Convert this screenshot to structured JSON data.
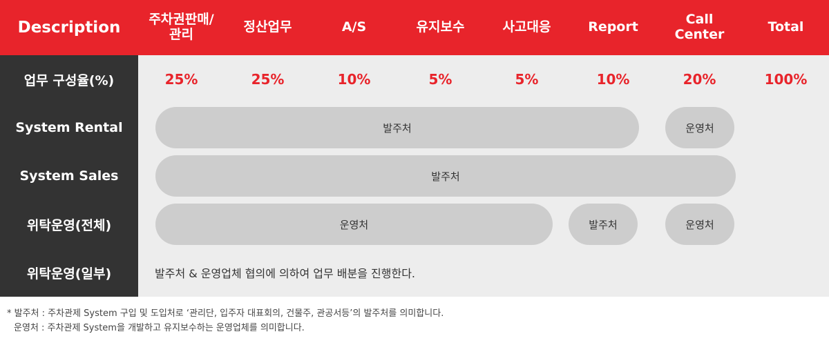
{
  "header": {
    "description": "Description",
    "columns": [
      "주차권판매/\n관리",
      "정산업무",
      "A/S",
      "유지보수",
      "사고대응",
      "Report",
      "Call\nCenter",
      "Total"
    ]
  },
  "rows": {
    "ratio_label": "업무 구성율(%)",
    "ratios": [
      "25%",
      "25%",
      "10%",
      "5%",
      "5%",
      "10%",
      "20%",
      "100%"
    ],
    "system_rental": {
      "label": "System Rental",
      "pill1": "발주처",
      "pill2": "운영처"
    },
    "system_sales": {
      "label": "System Sales",
      "pill1": "발주처"
    },
    "consign_all": {
      "label": "위탁운영(전체)",
      "pill1": "운영처",
      "pill2": "발주처",
      "pill3": "운영처"
    },
    "consign_partial": {
      "label": "위탁운영(일부)",
      "text": "발주처 & 운영업체  협의에 의하여 업무 배분을 진행한다."
    }
  },
  "footnote": {
    "line1": "* 발주처 : 주차관제 System 구입 및 도입처로 ‘관리단, 입주자 대표회의, 건물주, 관공서등’의 발주처를 의미합니다.",
    "line2": "운영처 : 주차관제 System을 개발하고 유지보수하는 운영업체를 의미합니다."
  },
  "colors": {
    "accent": "#e8242b",
    "dark": "#333333",
    "panel": "#ededed",
    "pill": "#cdcdcd"
  }
}
